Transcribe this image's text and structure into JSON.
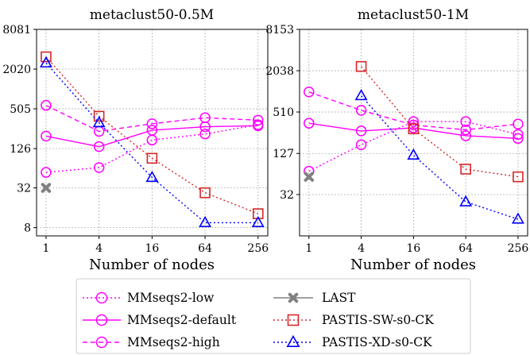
{
  "chart_data": [
    {
      "type": "line",
      "title": "metaclust50-0.5M",
      "xlabel": "Number of nodes",
      "ylabel": "",
      "x": [
        1,
        4,
        16,
        64,
        256
      ],
      "x_scale": "log2",
      "y_scale": "log",
      "xlim": [
        0.78,
        330
      ],
      "ylim": [
        6,
        8081
      ],
      "yticks": [
        8,
        32,
        126,
        505,
        2020,
        8081
      ],
      "xticks": [
        1,
        4,
        16,
        64,
        256
      ],
      "grid": true,
      "series": [
        {
          "name": "MMseqs2-low",
          "values": [
            55,
            65,
            170,
            210,
            290
          ]
        },
        {
          "name": "MMseqs2-default",
          "values": [
            195,
            135,
            240,
            270,
            280
          ]
        },
        {
          "name": "MMseqs2-high",
          "values": [
            570,
            230,
            300,
            370,
            340
          ]
        },
        {
          "name": "LAST",
          "values": [
            32,
            null,
            null,
            null,
            null
          ]
        },
        {
          "name": "PASTIS-SW-s0-CK",
          "values": [
            3100,
            390,
            90,
            27,
            13
          ]
        },
        {
          "name": "PASTIS-XD-s0-CK",
          "values": [
            2500,
            310,
            46,
            9.5,
            9.5
          ]
        }
      ]
    },
    {
      "type": "line",
      "title": "metaclust50-1M",
      "xlabel": "Number of nodes",
      "ylabel": "",
      "x": [
        1,
        4,
        16,
        64,
        256
      ],
      "x_scale": "log2",
      "y_scale": "log",
      "xlim": [
        0.78,
        330
      ],
      "ylim": [
        8,
        8153
      ],
      "yticks": [
        32,
        127,
        510,
        2038,
        8153
      ],
      "xticks": [
        1,
        4,
        16,
        64,
        256
      ],
      "grid": true,
      "series": [
        {
          "name": "MMseqs2-low",
          "values": [
            70,
            170,
            370,
            370,
            240
          ]
        },
        {
          "name": "MMseqs2-default",
          "values": [
            350,
            270,
            300,
            230,
            210
          ]
        },
        {
          "name": "MMseqs2-high",
          "values": [
            1000,
            540,
            330,
            280,
            340
          ]
        },
        {
          "name": "LAST",
          "values": [
            58,
            null,
            null,
            null,
            null
          ]
        },
        {
          "name": "PASTIS-SW-s0-CK",
          "values": [
            null,
            2350,
            290,
            75,
            58
          ]
        },
        {
          "name": "PASTIS-XD-s0-CK",
          "values": [
            null,
            880,
            120,
            25,
            14
          ]
        }
      ]
    }
  ],
  "legend": {
    "placement": "bottom",
    "entries": [
      {
        "name": "MMseqs2-low",
        "color": "#ff00ff",
        "dash": "dot",
        "marker": "circle"
      },
      {
        "name": "LAST",
        "color": "#808080",
        "dash": "solid",
        "marker": "x"
      },
      {
        "name": "MMseqs2-default",
        "color": "#ff00ff",
        "dash": "solid",
        "marker": "circle"
      },
      {
        "name": "PASTIS-SW-s0-CK",
        "color": "#d62728",
        "dash": "dot",
        "marker": "square"
      },
      {
        "name": "MMseqs2-high",
        "color": "#ff00ff",
        "dash": "dash",
        "marker": "circle"
      },
      {
        "name": "PASTIS-XD-s0-CK",
        "color": "#0000ff",
        "dash": "dot",
        "marker": "triangle"
      }
    ]
  }
}
